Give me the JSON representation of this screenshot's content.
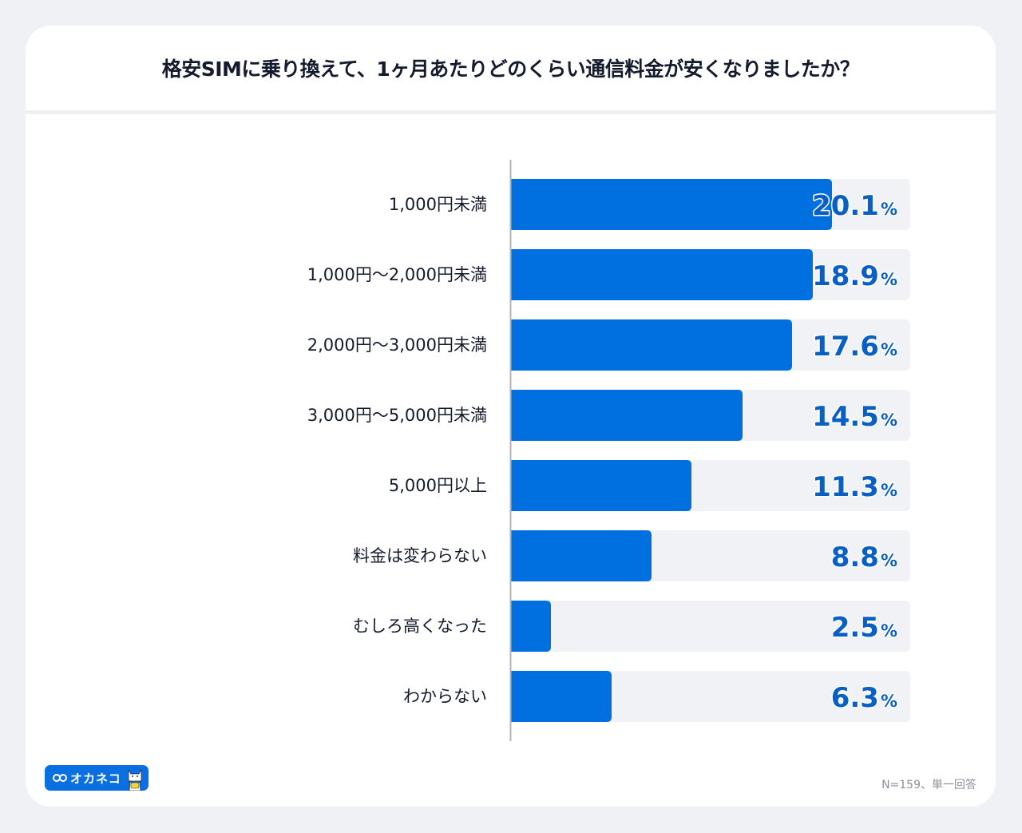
{
  "header": {
    "title": "格安SIMに乗り換えて、1ヶ月あたりどのくらい通信料金が安くなりましたか？"
  },
  "colors": {
    "bar_fill": "#0070e0",
    "bar_track": "#f0f2f5",
    "value_label": "#0a5fc4",
    "category_label": "#141b2d",
    "axis": "#b3b3b3",
    "page_background": "#eff1f4",
    "card_background": "#ffffff"
  },
  "chart_data": {
    "type": "bar",
    "orientation": "horizontal",
    "title": "格安SIMに乗り換えて、1ヶ月あたりどのくらい通信料金が安くなりましたか？",
    "xlabel": "",
    "ylabel": "",
    "unit": "%",
    "xlim": [
      0,
      25
    ],
    "grid": false,
    "legend": "none",
    "categories": [
      "1,000円未満",
      "1,000円〜2,000円未満",
      "2,000円〜3,000円未満",
      "3,000円〜5,000円未満",
      "5,000円以上",
      "料金は変わらない",
      "むしろ高くなった",
      "わからない"
    ],
    "values": [
      20.1,
      18.9,
      17.6,
      14.5,
      11.3,
      8.8,
      2.5,
      6.3
    ],
    "value_labels": [
      "20.1",
      "18.9",
      "17.6",
      "14.5",
      "11.3",
      "8.8",
      "2.5",
      "6.3"
    ],
    "percent_symbol": "%"
  },
  "footer": {
    "logo_text": "オカネコ",
    "logo_icon": "infinity-icon",
    "mascot_icon": "cat-mascot-icon",
    "note": "N=159、単一回答"
  }
}
